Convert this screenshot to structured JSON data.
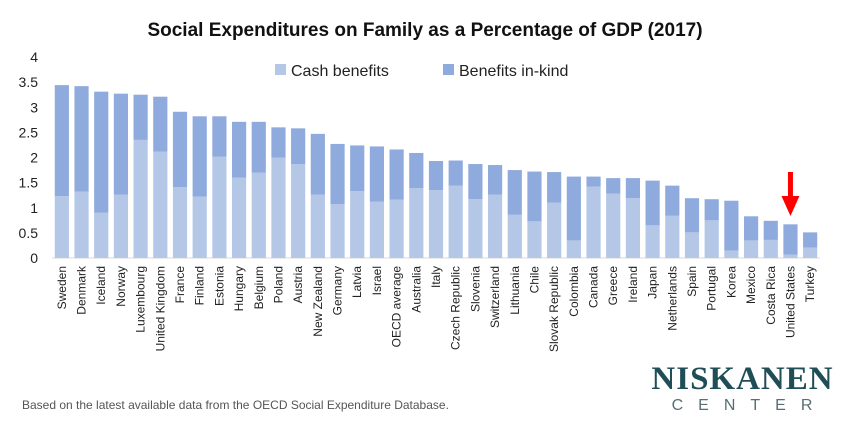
{
  "chart_data": {
    "type": "bar",
    "stacked": true,
    "title": "Social Expenditures on Family as a Percentage of GDP (2017)",
    "xlabel": "",
    "ylabel": "",
    "ylim": [
      0,
      4
    ],
    "yticks": [
      0,
      0.5,
      1,
      1.5,
      2,
      2.5,
      3,
      3.5,
      4
    ],
    "grid": false,
    "legend": "top-center",
    "categories": [
      "Sweden",
      "Denmark",
      "Iceland",
      "Norway",
      "Luxembourg",
      "United Kingdom",
      "France",
      "Finland",
      "Estonia",
      "Hungary",
      "Belgium",
      "Poland",
      "Austria",
      "New Zealand",
      "Germany",
      "Latvia",
      "Israel",
      "OECD average",
      "Australia",
      "Italy",
      "Czech Republic",
      "Slovenia",
      "Switzerland",
      "Lithuania",
      "Chile",
      "Slovak Republic",
      "Colombia",
      "Canada",
      "Greece",
      "Ireland",
      "Japan",
      "Netherlands",
      "Spain",
      "Portugal",
      "Korea",
      "Mexico",
      "Costa Rica",
      "United States",
      "Turkey"
    ],
    "series": [
      {
        "name": "Cash benefits",
        "color": "#b4c7e7",
        "values": [
          1.23,
          1.32,
          0.9,
          1.26,
          2.35,
          2.12,
          1.41,
          1.22,
          2.02,
          1.6,
          1.7,
          2.0,
          1.87,
          1.26,
          1.07,
          1.33,
          1.12,
          1.16,
          1.39,
          1.35,
          1.44,
          1.17,
          1.26,
          0.86,
          0.73,
          1.1,
          0.35,
          1.42,
          1.28,
          1.19,
          0.65,
          0.84,
          0.51,
          0.75,
          0.15,
          0.35,
          0.36,
          0.07,
          0.21
        ]
      },
      {
        "name": "Benefits in-kind",
        "color": "#8faadc",
        "values": [
          2.21,
          2.1,
          2.41,
          2.01,
          0.9,
          1.09,
          1.5,
          1.6,
          0.8,
          1.11,
          1.01,
          0.6,
          0.71,
          1.21,
          1.2,
          0.91,
          1.1,
          1.0,
          0.7,
          0.58,
          0.5,
          0.7,
          0.59,
          0.89,
          0.99,
          0.61,
          1.27,
          0.2,
          0.31,
          0.4,
          0.89,
          0.6,
          0.68,
          0.42,
          0.99,
          0.48,
          0.38,
          0.6,
          0.3
        ]
      }
    ],
    "highlight": {
      "category": "United States",
      "marker": "red-down-arrow",
      "color": "#ff0000"
    }
  },
  "footnote": "Based on the latest available data from the OECD Social Expenditure Database.",
  "brand": {
    "name": "NISKANEN",
    "sub": "CENTER"
  }
}
